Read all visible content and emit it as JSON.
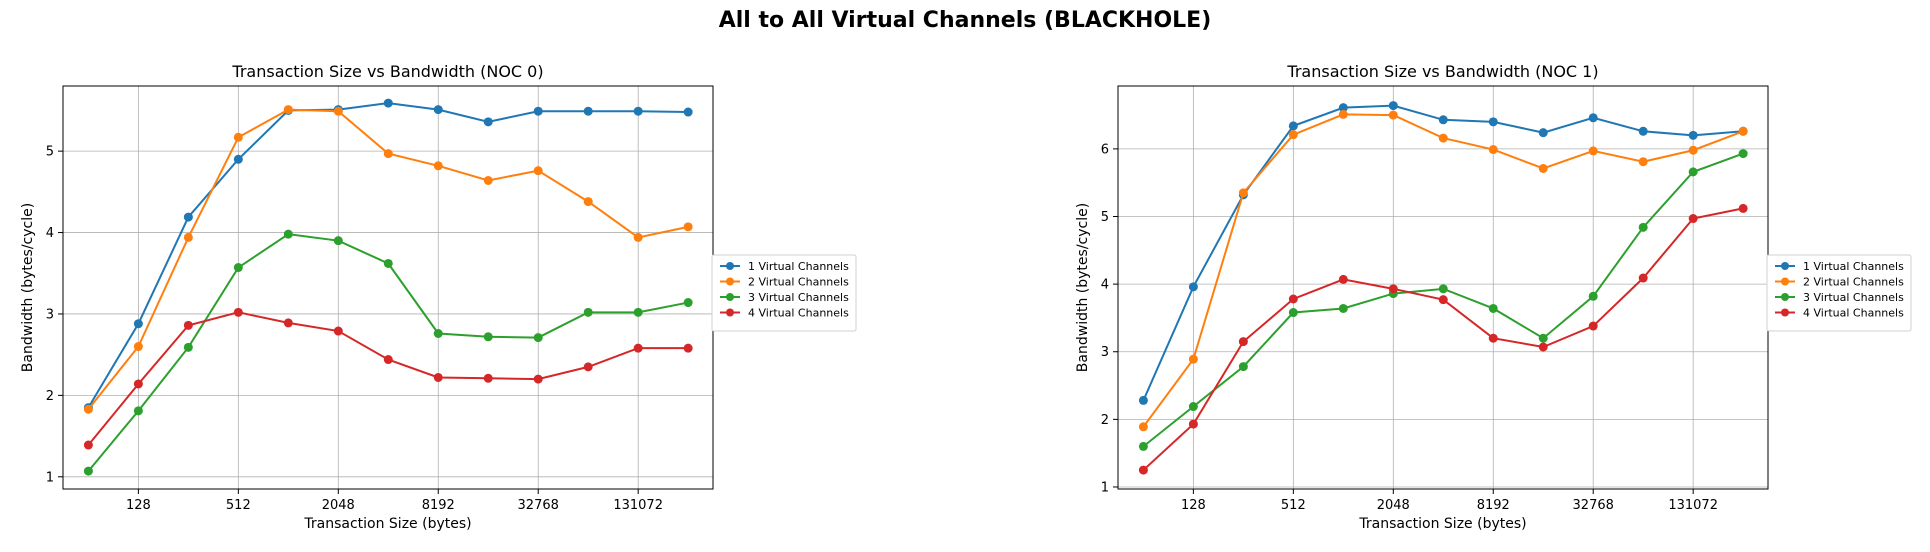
{
  "suptitle": "All to All Virtual Channels (BLACKHOLE)",
  "chart_data": [
    {
      "type": "line",
      "title": "Transaction Size vs Bandwidth (NOC 0)",
      "xlabel": "Transaction Size (bytes)",
      "ylabel": "Bandwidth (bytes/cycle)",
      "x_scale": "log2",
      "x": [
        64,
        128,
        256,
        512,
        1024,
        2048,
        4096,
        8192,
        16384,
        32768,
        65536,
        131072,
        262144
      ],
      "xticks": [
        128,
        512,
        2048,
        8192,
        32768,
        131072
      ],
      "xlim": [
        45,
        370000
      ],
      "yticks": [
        1,
        2,
        3,
        4,
        5
      ],
      "ylim": [
        0.85,
        5.8
      ],
      "grid": true,
      "legend": "outside-right",
      "series": [
        {
          "name": "1 Virtual Channels",
          "color": "#1f77b4",
          "values": [
            1.85,
            2.88,
            4.19,
            4.9,
            5.5,
            5.51,
            5.59,
            5.51,
            5.36,
            5.49,
            5.49,
            5.49,
            5.48
          ]
        },
        {
          "name": "2 Virtual Channels",
          "color": "#ff7f0e",
          "values": [
            1.83,
            2.6,
            3.94,
            5.17,
            5.51,
            5.49,
            4.97,
            4.82,
            4.64,
            4.76,
            4.38,
            3.94,
            4.07
          ]
        },
        {
          "name": "3 Virtual Channels",
          "color": "#2ca02c",
          "values": [
            1.07,
            1.81,
            2.59,
            3.57,
            3.98,
            3.9,
            3.62,
            2.76,
            2.72,
            2.71,
            3.02,
            3.02,
            3.14
          ]
        },
        {
          "name": "4 Virtual Channels",
          "color": "#d62728",
          "values": [
            1.39,
            2.14,
            2.86,
            3.02,
            2.89,
            2.79,
            2.44,
            2.22,
            2.21,
            2.2,
            2.35,
            2.58,
            2.58
          ]
        }
      ]
    },
    {
      "type": "line",
      "title": "Transaction Size vs Bandwidth (NOC 1)",
      "xlabel": "Transaction Size (bytes)",
      "ylabel": "Bandwidth (bytes/cycle)",
      "x_scale": "log2",
      "x": [
        64,
        128,
        256,
        512,
        1024,
        2048,
        4096,
        8192,
        16384,
        32768,
        65536,
        131072,
        262144
      ],
      "xticks": [
        128,
        512,
        2048,
        8192,
        32768,
        131072
      ],
      "xlim": [
        45,
        370000
      ],
      "yticks": [
        1,
        2,
        3,
        4,
        5,
        6
      ],
      "ylim": [
        0.97,
        6.93
      ],
      "grid": true,
      "legend": "outside-right",
      "series": [
        {
          "name": "1 Virtual Channels",
          "color": "#1f77b4",
          "values": [
            2.28,
            3.96,
            5.32,
            6.34,
            6.61,
            6.64,
            6.43,
            6.4,
            6.24,
            6.46,
            6.26,
            6.2,
            6.26
          ]
        },
        {
          "name": "2 Virtual Channels",
          "color": "#ff7f0e",
          "values": [
            1.89,
            2.89,
            5.35,
            6.21,
            6.51,
            6.5,
            6.16,
            5.99,
            5.71,
            5.97,
            5.81,
            5.98,
            6.26
          ]
        },
        {
          "name": "3 Virtual Channels",
          "color": "#2ca02c",
          "values": [
            1.6,
            2.19,
            2.78,
            3.58,
            3.64,
            3.86,
            3.93,
            3.64,
            3.2,
            3.82,
            4.84,
            5.66,
            5.93
          ]
        },
        {
          "name": "4 Virtual Channels",
          "color": "#d62728",
          "values": [
            1.25,
            1.93,
            3.15,
            3.78,
            4.07,
            3.93,
            3.77,
            3.2,
            3.07,
            3.38,
            4.09,
            4.97,
            5.12
          ]
        }
      ]
    }
  ]
}
